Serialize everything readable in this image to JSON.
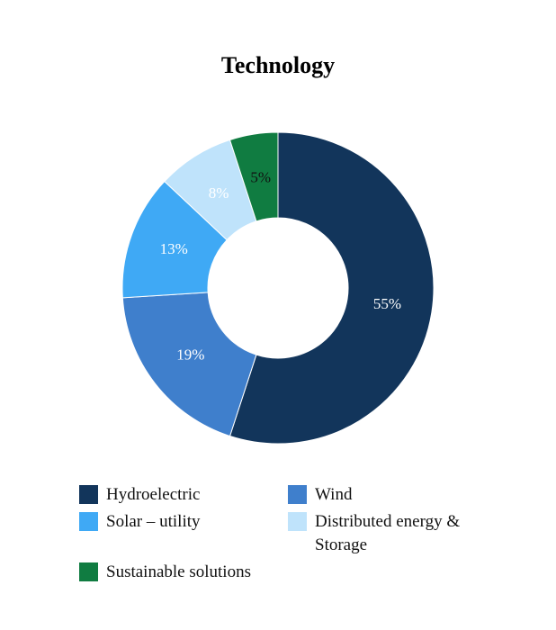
{
  "chart_data": {
    "type": "donut",
    "title": "Technology",
    "categories": [
      "Hydroelectric",
      "Wind",
      "Solar – utility",
      "Distributed energy & Storage",
      "Sustainable solutions"
    ],
    "values": [
      55,
      19,
      13,
      8,
      5
    ],
    "value_labels": [
      "55%",
      "19%",
      "13%",
      "8%",
      "5%"
    ],
    "colors": [
      "#12355b",
      "#3f7fcc",
      "#3fa9f5",
      "#bfe3fb",
      "#107c41"
    ],
    "label_colors": [
      "#ffffff",
      "#ffffff",
      "#ffffff",
      "#ffffff",
      "#111111"
    ]
  }
}
